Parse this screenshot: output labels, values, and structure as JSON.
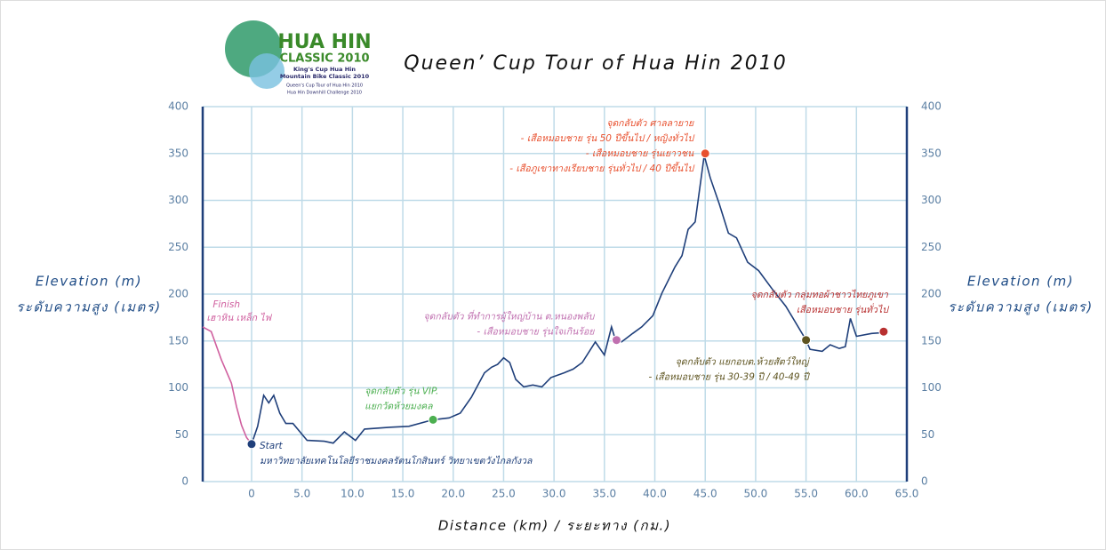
{
  "chart_data": {
    "type": "line",
    "title": "Queen’ Cup Tour of Hua Hin 2010",
    "logo": {
      "name": "HUA HIN",
      "subtitle": "CLASSIC 2010",
      "lines": [
        "King's Cup Hua Hin",
        "Mountain Bike Classic 2010",
        "Queen's Cup Tour of Hua Hin 2010",
        "Hua Hin Downhill Challenge 2010"
      ]
    },
    "x_label": "Distance (km) / ระยะทาง (กม.)",
    "y_label": [
      "Elevation (m)",
      "ระดับความสูง (เมตร)"
    ],
    "xlim": [
      -4.85,
      65
    ],
    "ylim": [
      0,
      400
    ],
    "xticks": [
      0,
      {
        "value": 5,
        "label": "5.0"
      },
      {
        "value": 10,
        "label": "10.0"
      },
      {
        "value": 15,
        "label": "15.0"
      },
      {
        "value": 20,
        "label": "20.0"
      },
      {
        "value": 25,
        "label": "25.0"
      },
      {
        "value": 30,
        "label": "30.0"
      },
      {
        "value": 35,
        "label": "35.0"
      },
      {
        "value": 40,
        "label": "40.0"
      },
      {
        "value": 45,
        "label": "45.0"
      },
      {
        "value": 50,
        "label": "50.0"
      },
      {
        "value": 55,
        "label": "55.0"
      },
      {
        "value": 60,
        "label": "60.0"
      },
      {
        "value": 65,
        "label": "65.0"
      }
    ],
    "yticks": [
      0,
      50,
      100,
      150,
      200,
      250,
      300,
      350,
      400
    ],
    "grid": true,
    "finish_label": [
      "Finish",
      "เฮาหิน เหล็ก ไฟ"
    ],
    "series": [
      {
        "color": "#d0609f",
        "x": [
          -4.85,
          -4,
          -3,
          -2,
          -1.5,
          -1,
          -0.5,
          0
        ],
        "values": [
          165,
          160,
          130,
          105,
          80,
          60,
          47,
          40
        ]
      },
      {
        "color": "#1f3f7a",
        "x": [
          0,
          0.6,
          1.2,
          1.7,
          2.2,
          2.8,
          3.4,
          4.1,
          5.5,
          7.2,
          8.1,
          9.2,
          10.3,
          11.2,
          13.8,
          15.6,
          18,
          19.6,
          20.7,
          21.8,
          23.1,
          23.8,
          24.4,
          25,
          25.6,
          26.2,
          27,
          27.9,
          28.8,
          29.7,
          31,
          31.9,
          32.8,
          34.1,
          35,
          35.7,
          36.1,
          36.7,
          37.8,
          38.7,
          39.8,
          40.7,
          42,
          42.7,
          43.3,
          44,
          44.9,
          45.5,
          46.4,
          47.3,
          48.1,
          49.2,
          50.3,
          51.6,
          53,
          55,
          55.4,
          56.6,
          57.4,
          58.3,
          58.9,
          59.4,
          60,
          61.5,
          62.7
        ],
        "values": [
          40,
          59,
          92,
          84,
          92,
          73,
          62,
          62,
          44,
          43,
          41,
          53,
          44,
          56,
          58,
          59,
          66,
          68,
          73,
          90,
          116,
          122,
          125,
          132,
          127,
          109,
          101,
          103,
          101,
          111,
          116,
          120,
          127,
          149,
          135,
          165,
          151,
          149,
          158,
          165,
          177,
          201,
          229,
          241,
          269,
          277,
          348,
          324,
          296,
          265,
          260,
          234,
          225,
          206,
          187,
          151,
          141,
          139,
          146,
          142,
          144,
          174,
          155,
          158,
          159
        ]
      }
    ],
    "checkpoints": [
      {
        "x": 0,
        "y": 40,
        "color": "#1f3f7a",
        "text": [
          "Start",
          "มหาวิทยาลัยเทคโนโลยีราชมงคลรัตนโกสินทร์ วิทยาเขตวังไกลกังวล"
        ]
      },
      {
        "x": 18,
        "y": 66,
        "color": "#4caf50",
        "text": [
          "จุดกลับตัว รุ่น VIP.",
          "แยกวัดห้วยมงคล"
        ]
      },
      {
        "x": 36.2,
        "y": 151,
        "color": "#c070b0",
        "text": [
          "จุดกลับตัว ที่ทำการผู้ใหญ่บ้าน ต.หนองพลับ",
          "- เสือหมอบชาย รุ่นใจเกินร้อย"
        ]
      },
      {
        "x": 45,
        "y": 350,
        "color": "#e8502e",
        "text": [
          "จุดกลับตัว ศาลลายาย",
          "- เสือหมอบชาย รุ่น 50 ปีขึ้นไป / หญิงทั่วไป",
          "- เสือหมอบชาย รุ่นเยาวชน",
          "- เสือภูเขาทางเรียบชาย รุ่นทั่วไป / 40 ปีขึ้นไป"
        ]
      },
      {
        "x": 55,
        "y": 151,
        "color": "#5e5420",
        "text": [
          "จุดกลับตัว แยกอบต.ห้วยสัตว์ใหญ่",
          "- เสือหมอบชาย รุ่น 30-39 ปี / 40-49 ปี"
        ]
      },
      {
        "x": 62.7,
        "y": 160,
        "color": "#b83030",
        "text": [
          "จุดกลับตัว กลุ่มทอผ้าชาวไทยภูเขา",
          "เสือหมอบชาย รุ่นทั่วไป"
        ]
      }
    ]
  }
}
